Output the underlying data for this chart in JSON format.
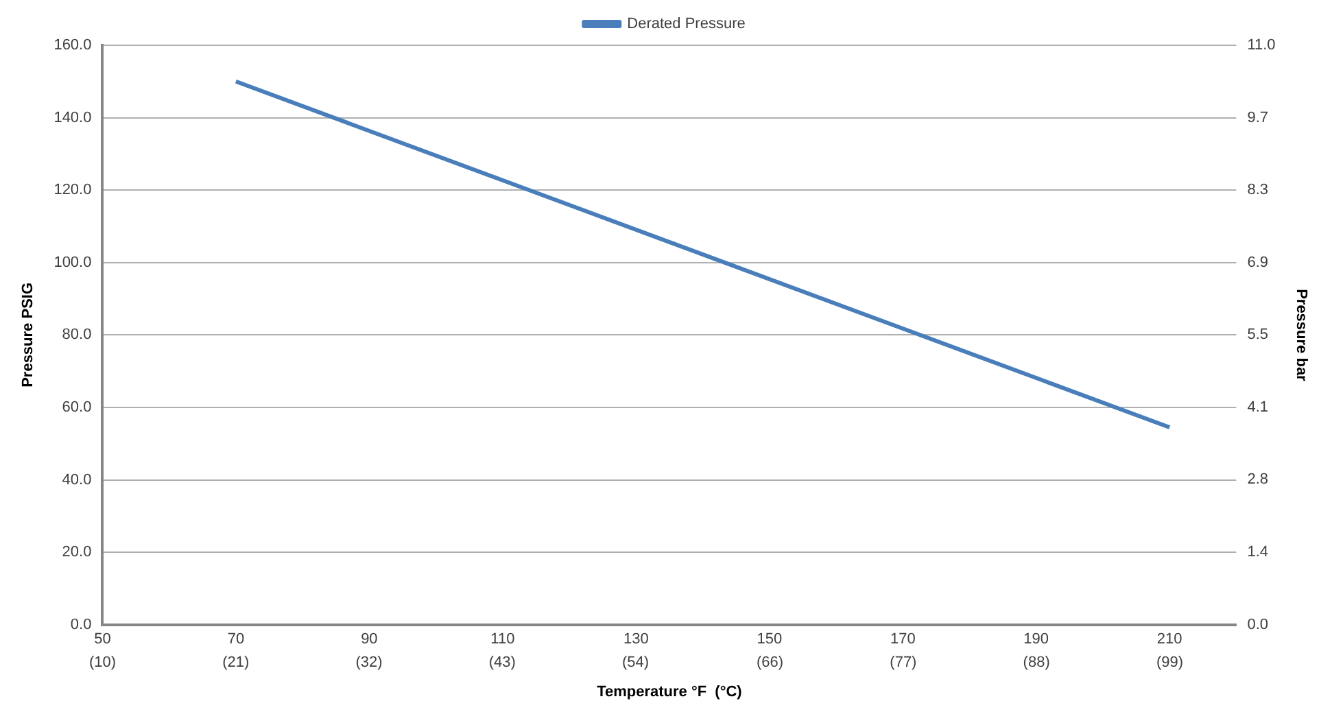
{
  "chart_data": {
    "type": "line",
    "x": [
      70,
      210
    ],
    "series": [
      {
        "name": "Derated Pressure",
        "color": "#4a7ebb",
        "values": [
          150,
          54.5
        ]
      }
    ],
    "xlabel": "Temperature °F  (°C)",
    "ylabel": "Pressure PSIG",
    "y2label": "Pressure bar",
    "xlim": [
      50,
      220
    ],
    "xticks": [
      50,
      70,
      90,
      110,
      130,
      150,
      170,
      190,
      210
    ],
    "x2lim": [
      10,
      104.44
    ],
    "x2ticks": [
      {
        "value": 10,
        "label": "(10)"
      },
      {
        "value": 21.1,
        "label": "(21)"
      },
      {
        "value": 32.2,
        "label": "(32)"
      },
      {
        "value": 43.3,
        "label": "(43)"
      },
      {
        "value": 54.4,
        "label": "(54)"
      },
      {
        "value": 65.6,
        "label": "(66)"
      },
      {
        "value": 76.7,
        "label": "(77)"
      },
      {
        "value": 87.8,
        "label": "(88)"
      },
      {
        "value": 98.9,
        "label": "(99)"
      }
    ],
    "ylim": [
      0,
      160
    ],
    "yticks": [
      {
        "value": 0,
        "label": "0.0"
      },
      {
        "value": 20,
        "label": "20.0"
      },
      {
        "value": 40,
        "label": "40.0"
      },
      {
        "value": 60,
        "label": "60.0"
      },
      {
        "value": 80,
        "label": "80.0"
      },
      {
        "value": 100,
        "label": "100.0"
      },
      {
        "value": 120,
        "label": "120.0"
      },
      {
        "value": 140,
        "label": "140.0"
      },
      {
        "value": 160,
        "label": "160.0"
      }
    ],
    "y2lim": [
      0,
      11.03
    ],
    "y2ticks": [
      {
        "value": 0,
        "label": "0.0"
      },
      {
        "value": 1.38,
        "label": "1.4"
      },
      {
        "value": 2.76,
        "label": "2.8"
      },
      {
        "value": 4.14,
        "label": "4.1"
      },
      {
        "value": 5.52,
        "label": "5.5"
      },
      {
        "value": 6.89,
        "label": "6.9"
      },
      {
        "value": 8.27,
        "label": "8.3"
      },
      {
        "value": 9.65,
        "label": "9.7"
      },
      {
        "value": 11.03,
        "label": "11.0"
      }
    ],
    "grid": "y",
    "legend": "top",
    "marker": "none",
    "line_style": "solid"
  }
}
